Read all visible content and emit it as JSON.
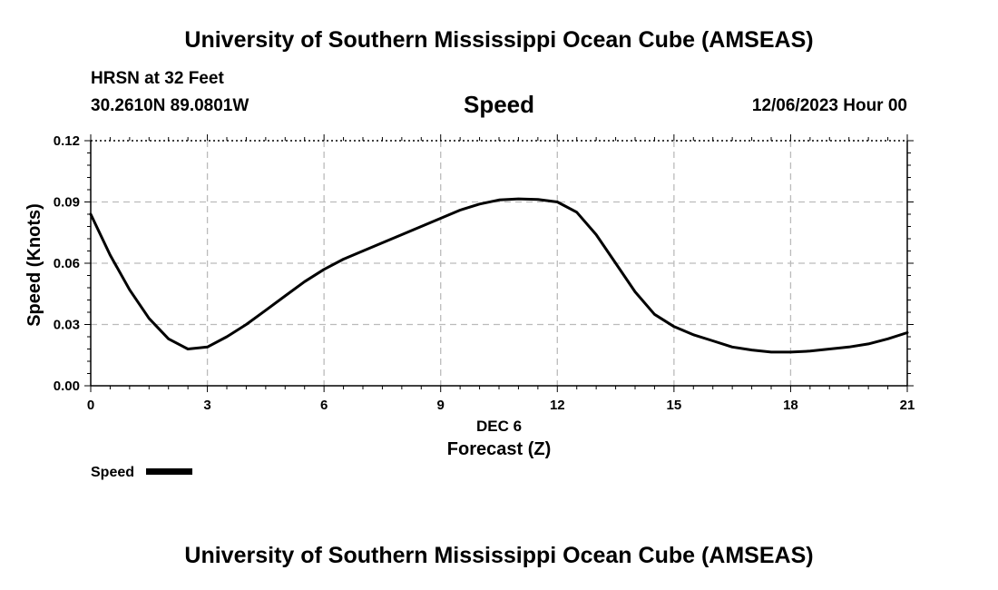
{
  "header": {
    "title": "University of Southern Mississippi Ocean Cube (AMSEAS)",
    "station": "HRSN at 32 Feet",
    "coordinates": "30.2610N  89.0801W",
    "variable": "Speed",
    "datetime": "12/06/2023 Hour 00"
  },
  "footer": {
    "title": "University of Southern Mississippi Ocean Cube (AMSEAS)"
  },
  "chart_data": {
    "type": "line",
    "title": "Speed",
    "xlabel": "Forecast (Z)",
    "xlabel_date": "DEC 6",
    "ylabel": "Speed (Knots)",
    "xlim": [
      0,
      21
    ],
    "ylim": [
      0,
      0.12
    ],
    "xticks": [
      0,
      3,
      6,
      9,
      12,
      15,
      18,
      21
    ],
    "xtick_labels": [
      "0",
      "3",
      "6",
      "9",
      "12",
      "15",
      "18",
      "21"
    ],
    "yticks": [
      0,
      0.03,
      0.06,
      0.09,
      0.12
    ],
    "ytick_labels": [
      "0.00",
      "0.03",
      "0.06",
      "0.09",
      "0.12"
    ],
    "grid": true,
    "legend": "bottom-left",
    "line_color": "#000000",
    "grid_color": "#bbbbbb",
    "series": [
      {
        "name": "Speed",
        "x": [
          0,
          0.5,
          1,
          1.5,
          2,
          2.5,
          3,
          3.5,
          4,
          4.5,
          5,
          5.5,
          6,
          6.5,
          7,
          7.5,
          8,
          8.5,
          9,
          9.5,
          10,
          10.5,
          11,
          11.5,
          12,
          12.5,
          13,
          13.5,
          14,
          14.5,
          15,
          15.5,
          16,
          16.5,
          17,
          17.5,
          18,
          18.5,
          19,
          19.5,
          20,
          20.5,
          21
        ],
        "values": [
          0.084,
          0.064,
          0.047,
          0.033,
          0.023,
          0.018,
          0.019,
          0.024,
          0.03,
          0.037,
          0.044,
          0.051,
          0.057,
          0.062,
          0.066,
          0.07,
          0.074,
          0.078,
          0.082,
          0.086,
          0.089,
          0.091,
          0.0915,
          0.0912,
          0.09,
          0.085,
          0.074,
          0.06,
          0.046,
          0.035,
          0.029,
          0.025,
          0.022,
          0.019,
          0.0175,
          0.0165,
          0.0165,
          0.017,
          0.018,
          0.019,
          0.0205,
          0.023,
          0.026
        ]
      }
    ]
  }
}
